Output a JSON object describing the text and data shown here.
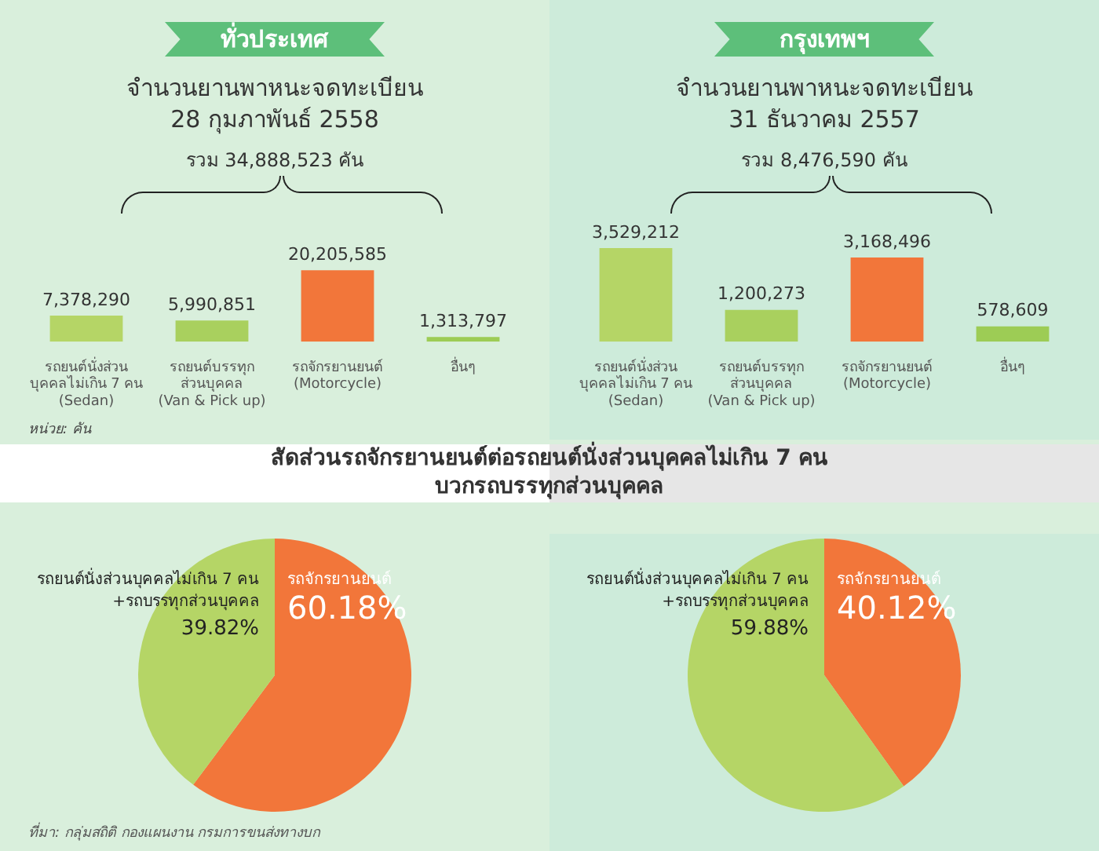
{
  "chart_data": [
    {
      "type": "bar",
      "title": "ทั่วประเทศ",
      "subtitle": "จำนวนยานพาหนะจดทะเบียน\n28 กุมภาพันธ์ 2558",
      "categories": [
        "รถยนต์นั่งส่วน\nบุคคลไม่เกิน 7 คน\n(Sedan)",
        "รถยนต์บรรทุก\nส่วนบุคคล\n(Van & Pick up)",
        "รถจักรยานยนต์\n(Motorcycle)",
        "อื่นๆ"
      ],
      "values": [
        7378290,
        5990851,
        20205585,
        1313797
      ],
      "colors": [
        "#b5d566",
        "#a9d05e",
        "#f2763a",
        "#9dcc55"
      ],
      "value_labels": [
        "7,378,290",
        "5,990,851",
        "20,205,585",
        "1,313,797"
      ],
      "tick_labels": "x",
      "annotations": [
        "รวม 34,888,523 คัน",
        "หน่วย: คัน"
      ]
    },
    {
      "type": "bar",
      "title": "กรุงเทพฯ",
      "subtitle": "จำนวนยานพาหนะจดทะเบียน\n31 ธันวาคม 2557",
      "categories": [
        "รถยนต์นั่งส่วน\nบุคคลไม่เกิน 7 คน\n(Sedan)",
        "รถยนต์บรรทุก\nส่วนบุคคล\n(Van & Pick up)",
        "รถจักรยานยนต์\n(Motorcycle)",
        "อื่นๆ"
      ],
      "values": [
        3529212,
        1200273,
        3168496,
        578609
      ],
      "colors": [
        "#b5d566",
        "#a9d05e",
        "#f2763a",
        "#9dcc55"
      ],
      "value_labels": [
        "3,529,212",
        "1,200,273",
        "3,168,496",
        "578,609"
      ],
      "tick_labels": "x",
      "annotations": [
        "รวม 8,476,590 คัน"
      ]
    },
    {
      "type": "pie",
      "title": "สัดส่วนรถจักรยานยนต์ต่อรถยนต์นั่งส่วนบุคคลไม่เกิน 7 คน\nบวกรถบรรทุกส่วนบุคคล",
      "categories": [
        "รถจักรยานยนต์",
        "รถยนต์นั่งส่วนบุคคลไม่เกิน 7 คน\n+รถบรรทุกส่วนบุคคล"
      ],
      "values": [
        60.18,
        39.82
      ],
      "colors": [
        "#f2763a",
        "#b5d566"
      ],
      "value_labels": [
        "60.18%",
        "39.82%"
      ],
      "annotations": [
        "ที่มา: กลุ่มสถิติ กองแผนงาน กรมการขนส่งทางบก"
      ]
    },
    {
      "type": "pie",
      "categories": [
        "รถจักรยานยนต์",
        "รถยนต์นั่งส่วนบุคคลไม่เกิน 7 คน\n+รถบรรทุกส่วนบุคคล"
      ],
      "values": [
        40.12,
        59.88
      ],
      "colors": [
        "#f2763a",
        "#b5d566"
      ],
      "value_labels": [
        "40.12%",
        "59.88%"
      ]
    }
  ]
}
